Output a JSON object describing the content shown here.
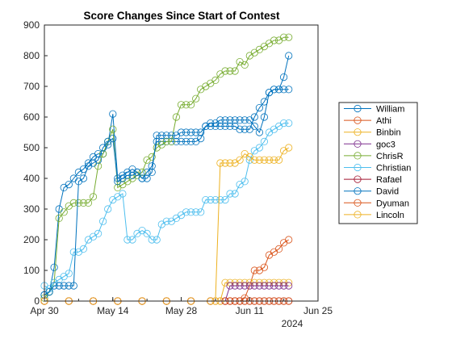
{
  "chart_data": {
    "type": "line",
    "title": "Score Changes Since Start of Contest",
    "xlabel": "",
    "ylabel": "",
    "x_unit": "date",
    "xlim": [
      "2024-04-30",
      "2024-06-25"
    ],
    "ylim": [
      0,
      900
    ],
    "x_ticks": [
      {
        "date": "2024-04-30",
        "label": "Apr 30"
      },
      {
        "date": "2024-05-14",
        "label": "May 14"
      },
      {
        "date": "2024-05-28",
        "label": "May 28"
      },
      {
        "date": "2024-06-11",
        "label": "Jun 11"
      },
      {
        "date": "2024-06-25",
        "label": "Jun 25"
      }
    ],
    "x_secondary_label": "2024",
    "y_ticks": [
      0,
      100,
      200,
      300,
      400,
      500,
      600,
      700,
      800,
      900
    ],
    "grid": false,
    "legend_position": "right",
    "marker": "circle-open",
    "series": [
      {
        "name": "William",
        "color": "#0072BD",
        "x": [
          "2024-04-30",
          "2024-05-01",
          "2024-05-02",
          "2024-05-03",
          "2024-05-04",
          "2024-05-05",
          "2024-05-06",
          "2024-05-07",
          "2024-05-08",
          "2024-05-09",
          "2024-05-10",
          "2024-05-11",
          "2024-05-12",
          "2024-05-13",
          "2024-05-14",
          "2024-05-15",
          "2024-05-16",
          "2024-05-17",
          "2024-05-18",
          "2024-05-19",
          "2024-05-20",
          "2024-05-21",
          "2024-05-22",
          "2024-05-23",
          "2024-05-24",
          "2024-05-25",
          "2024-05-26",
          "2024-05-27",
          "2024-05-28",
          "2024-05-29",
          "2024-05-30",
          "2024-05-31",
          "2024-06-01",
          "2024-06-02",
          "2024-06-03",
          "2024-06-04",
          "2024-06-05",
          "2024-06-06",
          "2024-06-07",
          "2024-06-08",
          "2024-06-09",
          "2024-06-10",
          "2024-06-11",
          "2024-06-12",
          "2024-06-13",
          "2024-06-14",
          "2024-06-15",
          "2024-06-16",
          "2024-06-17",
          "2024-06-18",
          "2024-06-19"
        ],
        "values": [
          20,
          30,
          110,
          300,
          370,
          380,
          400,
          420,
          430,
          450,
          470,
          480,
          480,
          510,
          610,
          400,
          410,
          420,
          430,
          420,
          400,
          420,
          440,
          520,
          520,
          520,
          520,
          520,
          520,
          520,
          520,
          520,
          530,
          570,
          580,
          580,
          590,
          590,
          590,
          590,
          590,
          590,
          590,
          570,
          550,
          600,
          680,
          690,
          690,
          690,
          690
        ]
      },
      {
        "name": "Athi",
        "color": "#D95319",
        "x": [
          "2024-04-30",
          "2024-05-05",
          "2024-05-10",
          "2024-05-15",
          "2024-05-20",
          "2024-05-25",
          "2024-05-30",
          "2024-06-03",
          "2024-06-04",
          "2024-06-05",
          "2024-06-06",
          "2024-06-07",
          "2024-06-08",
          "2024-06-09",
          "2024-06-10",
          "2024-06-11",
          "2024-06-12",
          "2024-06-13",
          "2024-06-14",
          "2024-06-15",
          "2024-06-16",
          "2024-06-17",
          "2024-06-18",
          "2024-06-19"
        ],
        "values": [
          0,
          0,
          0,
          0,
          0,
          0,
          0,
          0,
          0,
          0,
          0,
          0,
          0,
          0,
          10,
          50,
          100,
          100,
          110,
          150,
          160,
          170,
          190,
          200
        ]
      },
      {
        "name": "Binbin",
        "color": "#EDB120",
        "x": [
          "2024-04-30",
          "2024-05-05",
          "2024-05-10",
          "2024-05-15",
          "2024-05-20",
          "2024-05-25",
          "2024-05-30",
          "2024-06-03",
          "2024-06-05",
          "2024-06-06",
          "2024-06-07",
          "2024-06-08",
          "2024-06-09",
          "2024-06-10",
          "2024-06-11",
          "2024-06-12",
          "2024-06-13",
          "2024-06-14",
          "2024-06-15",
          "2024-06-16",
          "2024-06-17",
          "2024-06-18",
          "2024-06-19"
        ],
        "values": [
          0,
          0,
          0,
          0,
          0,
          0,
          0,
          0,
          0,
          60,
          60,
          60,
          60,
          60,
          60,
          60,
          60,
          60,
          60,
          60,
          60,
          60,
          60
        ]
      },
      {
        "name": "goc3",
        "color": "#7E2F8E",
        "x": [
          "2024-04-30",
          "2024-05-05",
          "2024-05-10",
          "2024-05-15",
          "2024-05-20",
          "2024-05-25",
          "2024-05-30",
          "2024-06-03",
          "2024-06-06",
          "2024-06-07",
          "2024-06-08",
          "2024-06-09",
          "2024-06-10",
          "2024-06-11",
          "2024-06-12",
          "2024-06-13",
          "2024-06-14",
          "2024-06-15",
          "2024-06-16",
          "2024-06-17",
          "2024-06-18",
          "2024-06-19"
        ],
        "values": [
          0,
          0,
          0,
          0,
          0,
          0,
          0,
          0,
          0,
          50,
          50,
          50,
          50,
          50,
          50,
          50,
          50,
          50,
          50,
          50,
          50,
          50
        ]
      },
      {
        "name": "ChrisR",
        "color": "#77AC30",
        "x": [
          "2024-04-30",
          "2024-05-01",
          "2024-05-02",
          "2024-05-03",
          "2024-05-04",
          "2024-05-05",
          "2024-05-06",
          "2024-05-07",
          "2024-05-08",
          "2024-05-09",
          "2024-05-10",
          "2024-05-11",
          "2024-05-12",
          "2024-05-13",
          "2024-05-14",
          "2024-05-15",
          "2024-05-16",
          "2024-05-17",
          "2024-05-18",
          "2024-05-19",
          "2024-05-20",
          "2024-05-21",
          "2024-05-22",
          "2024-05-23",
          "2024-05-24",
          "2024-05-25",
          "2024-05-26",
          "2024-05-27",
          "2024-05-28",
          "2024-05-29",
          "2024-05-30",
          "2024-05-31",
          "2024-06-01",
          "2024-06-02",
          "2024-06-03",
          "2024-06-04",
          "2024-06-05",
          "2024-06-06",
          "2024-06-07",
          "2024-06-08",
          "2024-06-09",
          "2024-06-10",
          "2024-06-11",
          "2024-06-12",
          "2024-06-13",
          "2024-06-14",
          "2024-06-15",
          "2024-06-16",
          "2024-06-17",
          "2024-06-18",
          "2024-06-19"
        ],
        "values": [
          10,
          30,
          60,
          270,
          290,
          310,
          320,
          320,
          320,
          320,
          340,
          440,
          480,
          520,
          560,
          370,
          380,
          390,
          400,
          410,
          420,
          460,
          470,
          500,
          510,
          520,
          520,
          600,
          640,
          640,
          640,
          660,
          690,
          700,
          710,
          720,
          740,
          750,
          750,
          750,
          780,
          770,
          800,
          810,
          820,
          830,
          840,
          850,
          850,
          860,
          860
        ]
      },
      {
        "name": "Christian",
        "color": "#4DBEEE",
        "x": [
          "2024-04-30",
          "2024-05-01",
          "2024-05-02",
          "2024-05-03",
          "2024-05-04",
          "2024-05-05",
          "2024-05-06",
          "2024-05-07",
          "2024-05-08",
          "2024-05-09",
          "2024-05-10",
          "2024-05-11",
          "2024-05-12",
          "2024-05-13",
          "2024-05-14",
          "2024-05-15",
          "2024-05-16",
          "2024-05-17",
          "2024-05-18",
          "2024-05-19",
          "2024-05-20",
          "2024-05-21",
          "2024-05-22",
          "2024-05-23",
          "2024-05-24",
          "2024-05-25",
          "2024-05-26",
          "2024-05-27",
          "2024-05-28",
          "2024-05-29",
          "2024-05-30",
          "2024-05-31",
          "2024-06-01",
          "2024-06-02",
          "2024-06-03",
          "2024-06-04",
          "2024-06-05",
          "2024-06-06",
          "2024-06-07",
          "2024-06-08",
          "2024-06-09",
          "2024-06-10",
          "2024-06-11",
          "2024-06-12",
          "2024-06-13",
          "2024-06-14",
          "2024-06-15",
          "2024-06-16",
          "2024-06-17",
          "2024-06-18",
          "2024-06-19"
        ],
        "values": [
          50,
          40,
          60,
          70,
          80,
          90,
          160,
          160,
          170,
          200,
          210,
          220,
          260,
          300,
          330,
          340,
          350,
          200,
          200,
          220,
          230,
          220,
          200,
          200,
          250,
          260,
          260,
          270,
          280,
          290,
          290,
          290,
          290,
          330,
          330,
          330,
          330,
          330,
          350,
          350,
          380,
          390,
          460,
          490,
          500,
          520,
          550,
          560,
          570,
          580,
          580
        ]
      },
      {
        "name": "Rafael",
        "color": "#A2142F",
        "x": [
          "2024-04-30",
          "2024-05-05",
          "2024-05-10",
          "2024-05-15",
          "2024-05-20",
          "2024-05-25",
          "2024-05-30",
          "2024-06-03",
          "2024-06-06",
          "2024-06-07",
          "2024-06-08",
          "2024-06-09",
          "2024-06-10",
          "2024-06-11",
          "2024-06-12",
          "2024-06-13",
          "2024-06-14",
          "2024-06-15",
          "2024-06-16",
          "2024-06-17",
          "2024-06-18",
          "2024-06-19"
        ],
        "values": [
          0,
          0,
          0,
          0,
          0,
          0,
          0,
          0,
          0,
          0,
          0,
          0,
          0,
          0,
          0,
          0,
          0,
          0,
          0,
          0,
          0,
          0
        ]
      },
      {
        "name": "David",
        "color": "#0072BD",
        "x": [
          "2024-04-30",
          "2024-05-01",
          "2024-05-02",
          "2024-05-03",
          "2024-05-04",
          "2024-05-05",
          "2024-05-06",
          "2024-05-07",
          "2024-05-08",
          "2024-05-09",
          "2024-05-10",
          "2024-05-11",
          "2024-05-12",
          "2024-05-13",
          "2024-05-14",
          "2024-05-15",
          "2024-05-16",
          "2024-05-17",
          "2024-05-18",
          "2024-05-19",
          "2024-05-20",
          "2024-05-21",
          "2024-05-22",
          "2024-05-23",
          "2024-05-24",
          "2024-05-25",
          "2024-05-26",
          "2024-05-27",
          "2024-05-28",
          "2024-05-29",
          "2024-05-30",
          "2024-05-31",
          "2024-06-01",
          "2024-06-02",
          "2024-06-03",
          "2024-06-04",
          "2024-06-05",
          "2024-06-06",
          "2024-06-07",
          "2024-06-08",
          "2024-06-09",
          "2024-06-10",
          "2024-06-11",
          "2024-06-12",
          "2024-06-13",
          "2024-06-14",
          "2024-06-15",
          "2024-06-16",
          "2024-06-17",
          "2024-06-18",
          "2024-06-19"
        ],
        "values": [
          20,
          30,
          50,
          50,
          50,
          50,
          50,
          390,
          400,
          440,
          450,
          460,
          500,
          520,
          530,
          390,
          400,
          410,
          410,
          420,
          400,
          400,
          420,
          540,
          540,
          540,
          540,
          540,
          550,
          550,
          550,
          550,
          550,
          570,
          570,
          570,
          570,
          570,
          570,
          570,
          560,
          560,
          560,
          600,
          630,
          650,
          680,
          690,
          690,
          730,
          800
        ]
      },
      {
        "name": "Dyuman",
        "color": "#D95319",
        "x": [
          "2024-04-30",
          "2024-05-05",
          "2024-05-10",
          "2024-05-15",
          "2024-05-20",
          "2024-05-25",
          "2024-05-30",
          "2024-06-03",
          "2024-06-06",
          "2024-06-07",
          "2024-06-08",
          "2024-06-09",
          "2024-06-10",
          "2024-06-11",
          "2024-06-12",
          "2024-06-13",
          "2024-06-14",
          "2024-06-15",
          "2024-06-16",
          "2024-06-17",
          "2024-06-18",
          "2024-06-19"
        ],
        "values": [
          0,
          0,
          0,
          0,
          0,
          0,
          0,
          0,
          0,
          0,
          0,
          0,
          0,
          0,
          0,
          0,
          0,
          0,
          0,
          0,
          0,
          0
        ]
      },
      {
        "name": "Lincoln",
        "color": "#EDB120",
        "x": [
          "2024-04-30",
          "2024-05-05",
          "2024-05-10",
          "2024-05-15",
          "2024-05-20",
          "2024-05-25",
          "2024-05-30",
          "2024-06-03",
          "2024-06-04",
          "2024-06-05",
          "2024-06-06",
          "2024-06-07",
          "2024-06-08",
          "2024-06-09",
          "2024-06-10",
          "2024-06-11",
          "2024-06-12",
          "2024-06-13",
          "2024-06-14",
          "2024-06-15",
          "2024-06-16",
          "2024-06-17",
          "2024-06-18",
          "2024-06-19"
        ],
        "values": [
          0,
          0,
          0,
          0,
          0,
          0,
          0,
          0,
          0,
          450,
          450,
          450,
          450,
          460,
          480,
          470,
          460,
          460,
          460,
          460,
          460,
          460,
          490,
          500
        ]
      }
    ]
  }
}
